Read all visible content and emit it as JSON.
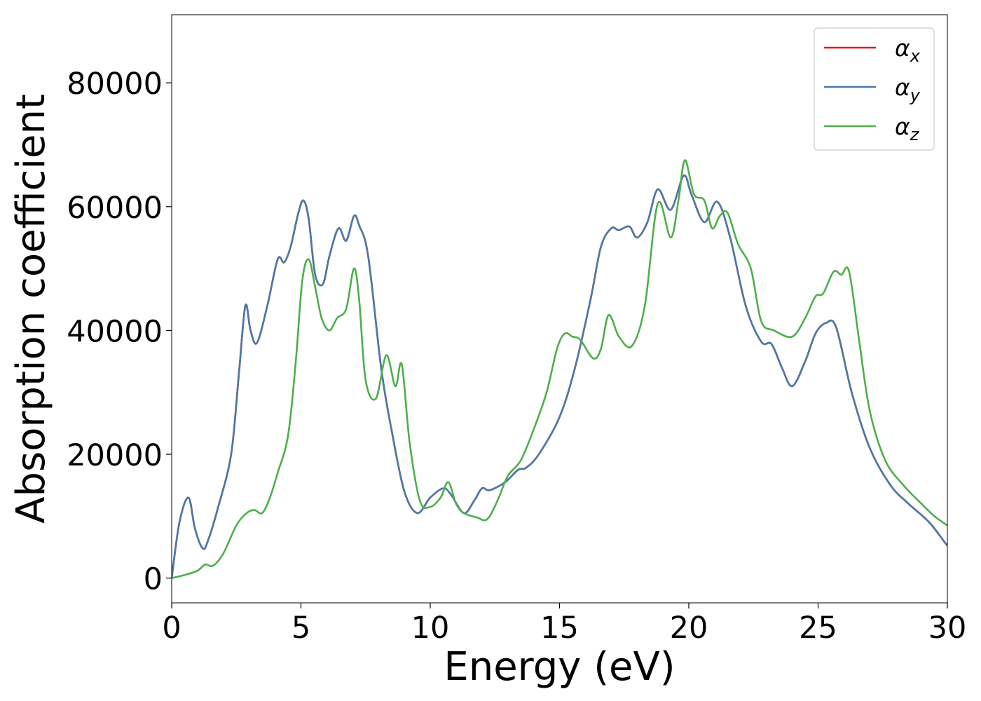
{
  "chart_data": {
    "type": "line",
    "xlabel": "Energy (eV)",
    "ylabel": "Absorption coefficient",
    "xlim": [
      0,
      30
    ],
    "ylim": [
      -4000,
      91000
    ],
    "xticks": [
      0,
      5,
      10,
      15,
      20,
      25,
      30
    ],
    "yticks": [
      0,
      20000,
      40000,
      60000,
      80000
    ],
    "grid": false,
    "legend_position": "top-right",
    "series": [
      {
        "name": "αx",
        "name_base": "α",
        "name_sub": "x",
        "color": "#e41a1c",
        "x": [
          0,
          0.3,
          0.65,
          0.9,
          1.2,
          1.4,
          1.8,
          2.3,
          2.6,
          2.85,
          3.05,
          3.3,
          3.7,
          4.1,
          4.35,
          4.6,
          4.9,
          5.1,
          5.3,
          5.55,
          5.85,
          6.1,
          6.45,
          6.75,
          7.05,
          7.25,
          7.6,
          8.1,
          8.5,
          9.0,
          9.5,
          10.0,
          10.5,
          10.8,
          11.3,
          11.7,
          12.0,
          12.3,
          12.9,
          13.4,
          13.7,
          14.2,
          15.0,
          15.6,
          16.2,
          16.6,
          17.0,
          17.3,
          17.7,
          18.0,
          18.4,
          18.8,
          19.3,
          19.8,
          20.1,
          20.6,
          21.1,
          21.6,
          22.2,
          22.8,
          23.2,
          23.6,
          24.0,
          24.5,
          24.9,
          25.3,
          25.7,
          26.3,
          27.0,
          27.8,
          28.5,
          29.3,
          30.0
        ],
        "values": [
          0,
          9000,
          13000,
          8000,
          4800,
          6000,
          11500,
          20000,
          33000,
          44000,
          40000,
          38000,
          44000,
          51500,
          51000,
          53500,
          59000,
          61000,
          58000,
          49000,
          47500,
          52000,
          56500,
          54500,
          58500,
          57000,
          52000,
          34000,
          24000,
          14000,
          10500,
          13000,
          14500,
          13500,
          10500,
          12500,
          14500,
          14200,
          15500,
          17500,
          17800,
          20000,
          26000,
          34000,
          45000,
          53500,
          56500,
          56200,
          56800,
          55000,
          57500,
          62800,
          59500,
          65000,
          62000,
          57500,
          60800,
          55000,
          44000,
          38200,
          37800,
          34000,
          31000,
          35000,
          39500,
          41200,
          40500,
          30000,
          21000,
          15000,
          12000,
          9000,
          5200
        ]
      },
      {
        "name": "αy",
        "name_base": "α",
        "name_sub": "y",
        "color": "#4a79a8",
        "x": [
          0,
          0.3,
          0.65,
          0.9,
          1.2,
          1.4,
          1.8,
          2.3,
          2.6,
          2.85,
          3.05,
          3.3,
          3.7,
          4.1,
          4.35,
          4.6,
          4.9,
          5.1,
          5.3,
          5.55,
          5.85,
          6.1,
          6.45,
          6.75,
          7.05,
          7.25,
          7.6,
          8.1,
          8.5,
          9.0,
          9.5,
          10.0,
          10.5,
          10.8,
          11.3,
          11.7,
          12.0,
          12.3,
          12.9,
          13.4,
          13.7,
          14.2,
          15.0,
          15.6,
          16.2,
          16.6,
          17.0,
          17.3,
          17.7,
          18.0,
          18.4,
          18.8,
          19.3,
          19.8,
          20.1,
          20.6,
          21.1,
          21.6,
          22.2,
          22.8,
          23.2,
          23.6,
          24.0,
          24.5,
          24.9,
          25.3,
          25.7,
          26.3,
          27.0,
          27.8,
          28.5,
          29.3,
          30.0
        ],
        "values": [
          0,
          9000,
          13000,
          8000,
          4800,
          6000,
          11500,
          20000,
          33000,
          44000,
          40000,
          38000,
          44000,
          51500,
          51000,
          53500,
          59000,
          61000,
          58000,
          49000,
          47500,
          52000,
          56500,
          54500,
          58500,
          57000,
          52000,
          34000,
          24000,
          14000,
          10500,
          13000,
          14500,
          13500,
          10500,
          12500,
          14500,
          14200,
          15500,
          17500,
          17800,
          20000,
          26000,
          34000,
          45000,
          53500,
          56500,
          56200,
          56800,
          55000,
          57500,
          62800,
          59500,
          65000,
          62000,
          57500,
          60800,
          55000,
          44000,
          38200,
          37800,
          34000,
          31000,
          35000,
          39500,
          41200,
          40500,
          30000,
          21000,
          15000,
          12000,
          9000,
          5200
        ]
      },
      {
        "name": "αz",
        "name_base": "α",
        "name_sub": "z",
        "color": "#4daf4a",
        "x": [
          0,
          0.5,
          1.0,
          1.3,
          1.6,
          2.0,
          2.5,
          2.9,
          3.2,
          3.5,
          3.8,
          4.1,
          4.5,
          4.8,
          5.05,
          5.3,
          5.55,
          5.8,
          6.1,
          6.4,
          6.75,
          7.05,
          7.25,
          7.5,
          7.9,
          8.3,
          8.65,
          8.9,
          9.2,
          9.6,
          10.0,
          10.4,
          10.7,
          11.0,
          11.3,
          11.8,
          12.2,
          12.6,
          13.0,
          13.5,
          14.0,
          14.5,
          14.9,
          15.2,
          15.5,
          15.8,
          16.3,
          16.6,
          16.9,
          17.3,
          17.8,
          18.3,
          18.8,
          19.3,
          19.6,
          19.85,
          20.2,
          20.6,
          20.9,
          21.2,
          21.5,
          21.9,
          22.4,
          22.8,
          23.3,
          24.0,
          24.5,
          24.9,
          25.2,
          25.6,
          25.9,
          26.2,
          26.6,
          27.0,
          27.6,
          28.3,
          29.0,
          29.5,
          30.0
        ],
        "values": [
          0,
          500,
          1200,
          2200,
          2000,
          4000,
          8500,
          10500,
          11000,
          10500,
          13000,
          17000,
          23000,
          35000,
          48000,
          51500,
          47000,
          42000,
          40000,
          42000,
          43500,
          50000,
          45000,
          32000,
          29000,
          36000,
          31000,
          34500,
          22000,
          12500,
          11500,
          13000,
          15500,
          12000,
          10500,
          9800,
          9500,
          12500,
          16500,
          19000,
          24000,
          30000,
          37000,
          39500,
          39000,
          38500,
          35500,
          37000,
          42500,
          39000,
          37500,
          44000,
          60500,
          55000,
          61000,
          67500,
          62000,
          61000,
          56500,
          58500,
          59000,
          54000,
          50000,
          41500,
          40000,
          39000,
          42000,
          45500,
          46000,
          49500,
          49000,
          49500,
          38000,
          27000,
          19000,
          15000,
          12000,
          10000,
          8500
        ]
      }
    ]
  }
}
